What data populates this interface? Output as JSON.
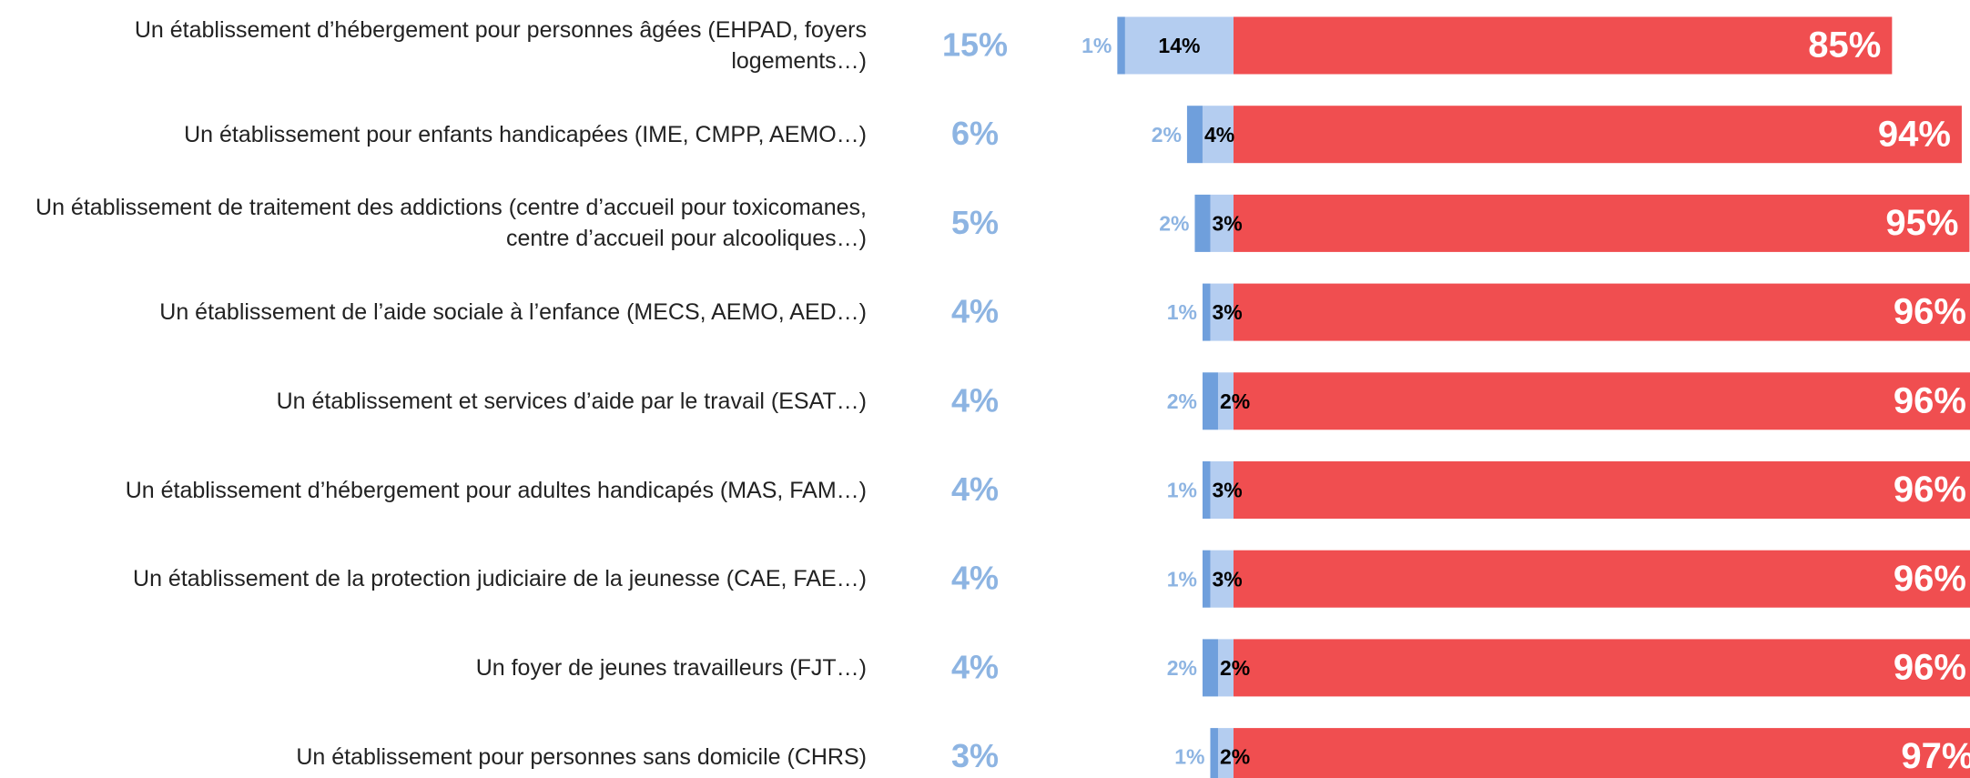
{
  "chart_data": {
    "type": "bar",
    "orientation": "horizontal",
    "stacked": true,
    "categories": [
      "Un établissement d’hébergement pour personnes âgées (EHPAD, foyers\nlogements…)",
      "Un établissement pour enfants handicapées (IME, CMPP, AEMO…)",
      "Un établissement de traitement des addictions (centre d’accueil pour toxicomanes,\ncentre d’accueil pour alcooliques…)",
      "Un établissement de l’aide sociale à l’enfance (MECS, AEMO, AED…)",
      "Un établissement et services d’aide par le travail (ESAT…)",
      "Un établissement d’hébergement pour adultes handicapés (MAS, FAM…)",
      "Un établissement de la protection judiciaire de la jeunesse (CAE, FAE…)",
      "Un foyer de jeunes travailleurs (FJT…)",
      "Un établissement pour personnes sans domicile (CHRS)"
    ],
    "totals": {
      "color": "#8db4e2",
      "values": [
        15,
        6,
        5,
        4,
        4,
        4,
        4,
        4,
        3
      ],
      "value_labels": [
        "15%",
        "6%",
        "5%",
        "4%",
        "4%",
        "4%",
        "4%",
        "4%",
        "3%"
      ]
    },
    "series": [
      {
        "color": "#6f9fdc",
        "values": [
          1,
          2,
          2,
          1,
          2,
          1,
          1,
          2,
          1
        ],
        "value_labels": [
          "1%",
          "2%",
          "2%",
          "1%",
          "2%",
          "1%",
          "1%",
          "2%",
          "1%"
        ]
      },
      {
        "color": "#b4cdf0",
        "values": [
          14,
          4,
          3,
          3,
          2,
          3,
          3,
          2,
          2
        ],
        "value_labels": [
          "14%",
          "4%",
          "3%",
          "3%",
          "2%",
          "3%",
          "3%",
          "2%",
          "2%"
        ]
      },
      {
        "color": "#f04e50",
        "values": [
          85,
          94,
          95,
          96,
          96,
          96,
          96,
          96,
          97
        ],
        "value_labels": [
          "85%",
          "94%",
          "95%",
          "96%",
          "96%",
          "96%",
          "96%",
          "96%",
          "97%"
        ]
      }
    ]
  }
}
